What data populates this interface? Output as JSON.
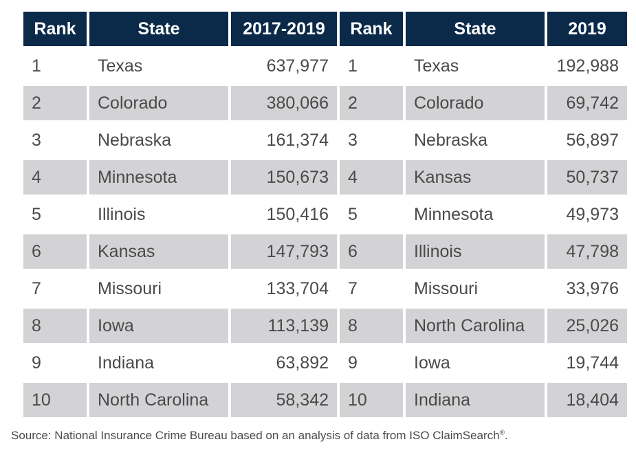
{
  "headers": {
    "left": [
      "Rank",
      "State",
      "2017-2019"
    ],
    "right": [
      "Rank",
      "State",
      "2019"
    ]
  },
  "left_table": [
    {
      "rank": "1",
      "state": "Texas",
      "value": "637,977"
    },
    {
      "rank": "2",
      "state": "Colorado",
      "value": "380,066"
    },
    {
      "rank": "3",
      "state": "Nebraska",
      "value": "161,374"
    },
    {
      "rank": "4",
      "state": "Minnesota",
      "value": "150,673"
    },
    {
      "rank": "5",
      "state": "Illinois",
      "value": "150,416"
    },
    {
      "rank": "6",
      "state": "Kansas",
      "value": "147,793"
    },
    {
      "rank": "7",
      "state": "Missouri",
      "value": "133,704"
    },
    {
      "rank": "8",
      "state": "Iowa",
      "value": "113,139"
    },
    {
      "rank": "9",
      "state": "Indiana",
      "value": "63,892"
    },
    {
      "rank": "10",
      "state": "North Carolina",
      "value": "58,342"
    }
  ],
  "right_table": [
    {
      "rank": "1",
      "state": "Texas",
      "value": "192,988"
    },
    {
      "rank": "2",
      "state": "Colorado",
      "value": "69,742"
    },
    {
      "rank": "3",
      "state": "Nebraska",
      "value": "56,897"
    },
    {
      "rank": "4",
      "state": "Kansas",
      "value": "50,737"
    },
    {
      "rank": "5",
      "state": "Minnesota",
      "value": "49,973"
    },
    {
      "rank": "6",
      "state": "Illinois",
      "value": "47,798"
    },
    {
      "rank": "7",
      "state": "Missouri",
      "value": "33,976"
    },
    {
      "rank": "8",
      "state": "North Carolina",
      "value": "25,026"
    },
    {
      "rank": "9",
      "state": "Iowa",
      "value": "19,744"
    },
    {
      "rank": "10",
      "state": "Indiana",
      "value": "18,404"
    }
  ],
  "source": {
    "text": "Source: National Insurance Crime Bureau based on an analysis of data from ISO ClaimSearch",
    "mark": "®",
    "end": "."
  },
  "colors": {
    "header_bg": "#0b2a4a",
    "shade_bg": "#d3d3d6",
    "text": "#4a4a4a"
  }
}
